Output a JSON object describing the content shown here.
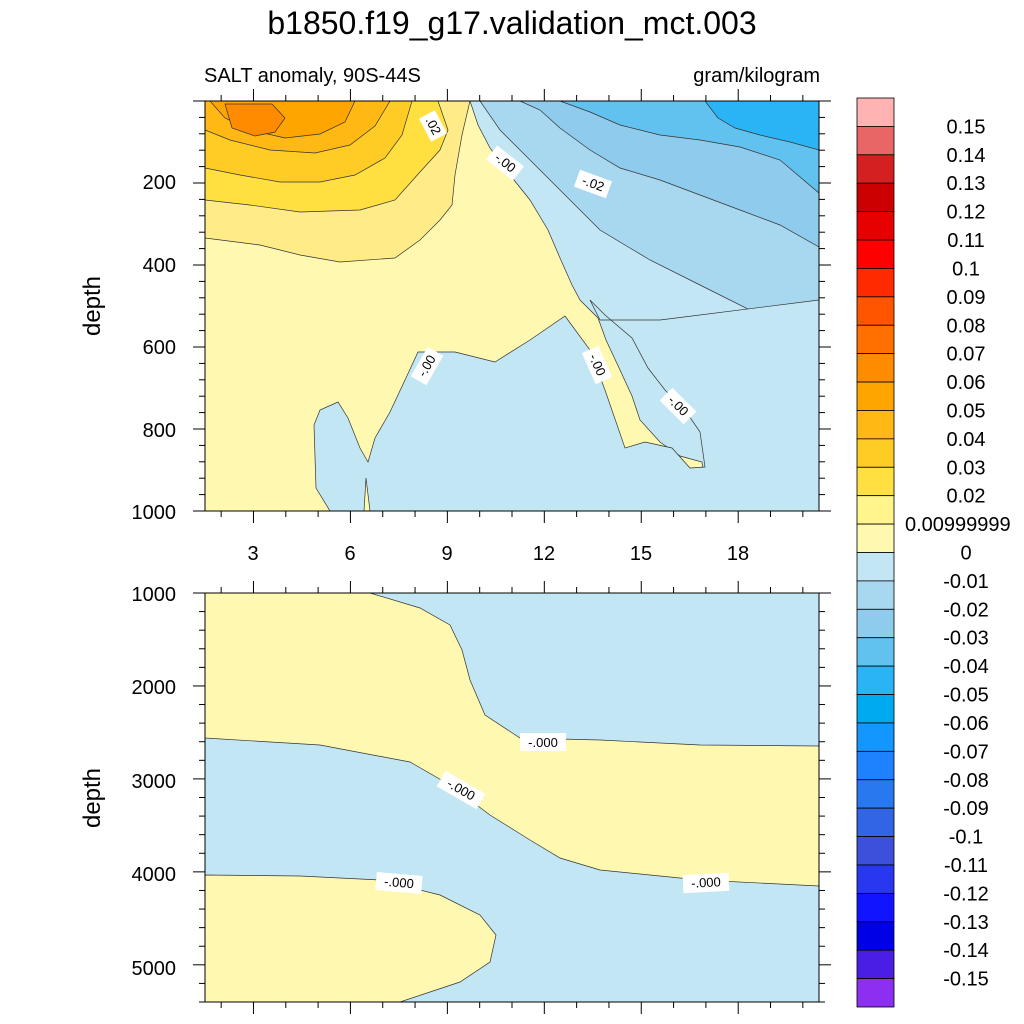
{
  "title": "b1850.f19_g17.validation_mct.003",
  "subtitle_left": "SALT anomaly, 90S-44S",
  "subtitle_right": "gram/kilogram",
  "chart_data": {
    "type": "contour",
    "variable": "SALT anomaly",
    "region": "90S-44S",
    "units": "gram/kilogram",
    "xticks": [
      "3",
      "6",
      "9",
      "12",
      "15",
      "18"
    ],
    "xrange": [
      1.5,
      20.5
    ],
    "panels": [
      {
        "name": "upper",
        "ylabel": "depth",
        "yrange": [
          0,
          1000
        ],
        "yreversed": true,
        "yticks": [
          "200",
          "400",
          "600",
          "800",
          "1000"
        ],
        "contour_labels": [
          ".02",
          "-.00",
          "-.02",
          "-.00",
          "-.00",
          "-.00"
        ]
      },
      {
        "name": "lower",
        "ylabel": "depth",
        "yrange": [
          1000,
          5400
        ],
        "yreversed": true,
        "yticks": [
          "1000",
          "2000",
          "3000",
          "4000",
          "5000"
        ],
        "contour_labels": [
          "-.000",
          "-.000",
          "-.000",
          "-.000"
        ]
      }
    ],
    "colorbar": {
      "labels": [
        "0.15",
        "0.14",
        "0.13",
        "0.12",
        "0.11",
        "0.1",
        "0.09",
        "0.08",
        "0.07",
        "0.06",
        "0.05",
        "0.04",
        "0.03",
        "0.02",
        "0.00999999",
        "0",
        "-0.01",
        "-0.02",
        "-0.03",
        "-0.04",
        "-0.05",
        "-0.06",
        "-0.07",
        "-0.08",
        "-0.09",
        "-0.1",
        "-0.11",
        "-0.12",
        "-0.13",
        "-0.14",
        "-0.15"
      ],
      "colors": [
        "#ffb3b3",
        "#e86666",
        "#d42020",
        "#cc0000",
        "#e60000",
        "#ff0000",
        "#ff2a00",
        "#ff5500",
        "#ff7000",
        "#ff8c00",
        "#ffa500",
        "#ffb814",
        "#ffcc26",
        "#ffe040",
        "#fff58c",
        "#fff8b0",
        "#c2e6f4",
        "#a8d8f0",
        "#8ecbec",
        "#61c2f0",
        "#2ab4f5",
        "#00aaf0",
        "#1496ff",
        "#1e82ff",
        "#2878f0",
        "#3264e6",
        "#3c50dc",
        "#2838f0",
        "#1014ff",
        "#0000e6",
        "#4b1ee6",
        "#8c2ff0"
      ]
    }
  }
}
